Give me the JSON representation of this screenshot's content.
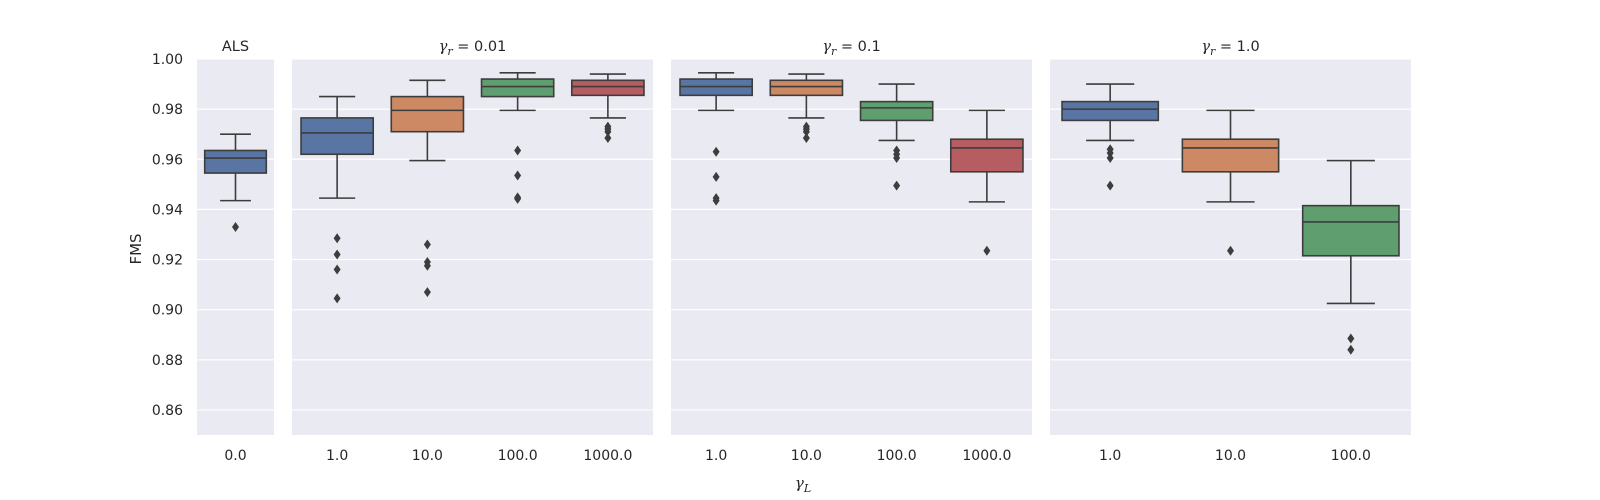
{
  "chart_data": {
    "type": "box",
    "ylabel": "FMS",
    "xlabel": {
      "symbol": "γ",
      "sub": "L"
    },
    "ylim": [
      0.85,
      1.0
    ],
    "yticks": [
      "0.86",
      "0.88",
      "0.90",
      "0.92",
      "0.94",
      "0.96",
      "0.98",
      "1.00"
    ],
    "grid": true,
    "palette": [
      "#5975a4",
      "#cc8963",
      "#5f9e6e",
      "#b55d60"
    ],
    "panels": [
      {
        "title": "ALS",
        "boxes": [
          {
            "category": "0.0",
            "min": 0.9435,
            "q1": 0.9545,
            "median": 0.9605,
            "q3": 0.9635,
            "max": 0.97,
            "outliers": [
              0.933
            ]
          }
        ]
      },
      {
        "title": {
          "symbol": "γ",
          "sub": "r",
          "rest": " = 0.01"
        },
        "boxes": [
          {
            "category": "1.0",
            "min": 0.9445,
            "q1": 0.962,
            "median": 0.9705,
            "q3": 0.9765,
            "max": 0.985,
            "outliers": [
              0.9285,
              0.922,
              0.916,
              0.9045
            ]
          },
          {
            "category": "10.0",
            "min": 0.9595,
            "q1": 0.971,
            "median": 0.9795,
            "q3": 0.985,
            "max": 0.9915,
            "outliers": [
              0.926,
              0.919,
              0.9175,
              0.907
            ]
          },
          {
            "category": "100.0",
            "min": 0.9795,
            "q1": 0.985,
            "median": 0.989,
            "q3": 0.992,
            "max": 0.9945,
            "outliers": [
              0.9635,
              0.9535,
              0.9448,
              0.9442
            ]
          },
          {
            "category": "1000.0",
            "min": 0.9765,
            "q1": 0.9855,
            "median": 0.989,
            "q3": 0.9915,
            "max": 0.994,
            "outliers": [
              0.973,
              0.972,
              0.971,
              0.9685
            ]
          }
        ]
      },
      {
        "title": {
          "symbol": "γ",
          "sub": "r",
          "rest": " = 0.1"
        },
        "boxes": [
          {
            "category": "1.0",
            "min": 0.9795,
            "q1": 0.9855,
            "median": 0.989,
            "q3": 0.992,
            "max": 0.9945,
            "outliers": [
              0.963,
              0.953,
              0.9445,
              0.9435
            ]
          },
          {
            "category": "10.0",
            "min": 0.9765,
            "q1": 0.9855,
            "median": 0.989,
            "q3": 0.9915,
            "max": 0.994,
            "outliers": [
              0.973,
              0.972,
              0.971,
              0.9685
            ]
          },
          {
            "category": "100.0",
            "min": 0.9675,
            "q1": 0.9755,
            "median": 0.9805,
            "q3": 0.983,
            "max": 0.99,
            "outliers": [
              0.9635,
              0.962,
              0.9605,
              0.9495
            ]
          },
          {
            "category": "1000.0",
            "min": 0.943,
            "q1": 0.955,
            "median": 0.9645,
            "q3": 0.968,
            "max": 0.9795,
            "outliers": [
              0.9235
            ]
          }
        ]
      },
      {
        "title": {
          "symbol": "γ",
          "sub": "r",
          "rest": " = 1.0"
        },
        "boxes": [
          {
            "category": "1.0",
            "min": 0.9675,
            "q1": 0.9755,
            "median": 0.98,
            "q3": 0.983,
            "max": 0.99,
            "outliers": [
              0.964,
              0.9625,
              0.9605,
              0.9495
            ]
          },
          {
            "category": "10.0",
            "min": 0.943,
            "q1": 0.955,
            "median": 0.9645,
            "q3": 0.968,
            "max": 0.9795,
            "outliers": [
              0.9235
            ]
          },
          {
            "category": "100.0",
            "min": 0.9025,
            "q1": 0.9215,
            "median": 0.935,
            "q3": 0.9415,
            "max": 0.9595,
            "outliers": [
              0.8885,
              0.884
            ]
          }
        ]
      }
    ]
  }
}
